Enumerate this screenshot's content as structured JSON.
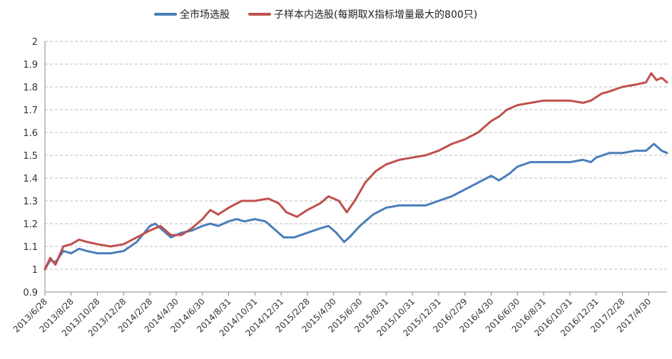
{
  "chart_data": {
    "type": "line",
    "title": "",
    "xlabel": "",
    "ylabel": "",
    "ylim": [
      0.9,
      2.0
    ],
    "yticks": [
      "0.9",
      "1",
      "1.1",
      "1.2",
      "1.3",
      "1.4",
      "1.5",
      "1.6",
      "1.7",
      "1.8",
      "1.9",
      "2"
    ],
    "grid": "horizontal-dashed",
    "legend": "top",
    "x_tick_labels": [
      "2013/6/28",
      "2013/8/28",
      "2013/10/28",
      "2013/12/28",
      "2014/2/28",
      "2014/4/30",
      "2014/6/30",
      "2014/8/31",
      "2014/10/31",
      "2014/12/31",
      "2015/2/28",
      "2015/4/30",
      "2015/6/30",
      "2015/8/31",
      "2015/10/31",
      "2015/12/31",
      "2016/2/29",
      "2016/4/30",
      "2016/6/30",
      "2016/8/31",
      "2016/10/31",
      "2016/12/31",
      "2017/2/28",
      "2017/4/30"
    ],
    "x_index_range": [
      0,
      23.7
    ],
    "series": [
      {
        "name": "全市场选股",
        "color": "#4a7ebb",
        "points": [
          [
            0,
            1.0
          ],
          [
            0.2,
            1.04
          ],
          [
            0.4,
            1.03
          ],
          [
            0.7,
            1.08
          ],
          [
            1.0,
            1.07
          ],
          [
            1.3,
            1.09
          ],
          [
            1.6,
            1.08
          ],
          [
            2.0,
            1.07
          ],
          [
            2.5,
            1.07
          ],
          [
            3.0,
            1.08
          ],
          [
            3.5,
            1.12
          ],
          [
            4.0,
            1.19
          ],
          [
            4.2,
            1.2
          ],
          [
            4.5,
            1.17
          ],
          [
            4.8,
            1.14
          ],
          [
            5.2,
            1.16
          ],
          [
            5.6,
            1.17
          ],
          [
            6.0,
            1.19
          ],
          [
            6.3,
            1.2
          ],
          [
            6.6,
            1.19
          ],
          [
            7.0,
            1.21
          ],
          [
            7.3,
            1.22
          ],
          [
            7.6,
            1.21
          ],
          [
            8.0,
            1.22
          ],
          [
            8.4,
            1.21
          ],
          [
            8.8,
            1.17
          ],
          [
            9.1,
            1.14
          ],
          [
            9.5,
            1.14
          ],
          [
            10.0,
            1.16
          ],
          [
            10.5,
            1.18
          ],
          [
            10.8,
            1.19
          ],
          [
            11.1,
            1.16
          ],
          [
            11.4,
            1.12
          ],
          [
            11.6,
            1.14
          ],
          [
            12.0,
            1.19
          ],
          [
            12.5,
            1.24
          ],
          [
            13.0,
            1.27
          ],
          [
            13.5,
            1.28
          ],
          [
            14.0,
            1.28
          ],
          [
            14.5,
            1.28
          ],
          [
            15.0,
            1.3
          ],
          [
            15.5,
            1.32
          ],
          [
            16.0,
            1.35
          ],
          [
            16.5,
            1.38
          ],
          [
            17.0,
            1.41
          ],
          [
            17.3,
            1.39
          ],
          [
            17.7,
            1.42
          ],
          [
            18.0,
            1.45
          ],
          [
            18.5,
            1.47
          ],
          [
            19.0,
            1.47
          ],
          [
            19.5,
            1.47
          ],
          [
            20.0,
            1.47
          ],
          [
            20.5,
            1.48
          ],
          [
            20.8,
            1.47
          ],
          [
            21.0,
            1.49
          ],
          [
            21.5,
            1.51
          ],
          [
            22.0,
            1.51
          ],
          [
            22.5,
            1.52
          ],
          [
            22.9,
            1.52
          ],
          [
            23.2,
            1.55
          ],
          [
            23.5,
            1.52
          ],
          [
            23.7,
            1.51
          ]
        ]
      },
      {
        "name": "子样本内选股(每期取X指标增量最大的800只)",
        "color": "#c0504d",
        "points": [
          [
            0,
            1.0
          ],
          [
            0.2,
            1.05
          ],
          [
            0.4,
            1.02
          ],
          [
            0.7,
            1.1
          ],
          [
            1.0,
            1.11
          ],
          [
            1.3,
            1.13
          ],
          [
            1.6,
            1.12
          ],
          [
            2.0,
            1.11
          ],
          [
            2.5,
            1.1
          ],
          [
            3.0,
            1.11
          ],
          [
            3.5,
            1.14
          ],
          [
            4.0,
            1.17
          ],
          [
            4.4,
            1.19
          ],
          [
            4.8,
            1.15
          ],
          [
            5.2,
            1.15
          ],
          [
            5.6,
            1.18
          ],
          [
            6.0,
            1.22
          ],
          [
            6.3,
            1.26
          ],
          [
            6.6,
            1.24
          ],
          [
            7.0,
            1.27
          ],
          [
            7.5,
            1.3
          ],
          [
            8.0,
            1.3
          ],
          [
            8.5,
            1.31
          ],
          [
            8.9,
            1.29
          ],
          [
            9.2,
            1.25
          ],
          [
            9.6,
            1.23
          ],
          [
            10.0,
            1.26
          ],
          [
            10.5,
            1.29
          ],
          [
            10.8,
            1.32
          ],
          [
            11.2,
            1.3
          ],
          [
            11.5,
            1.25
          ],
          [
            11.8,
            1.3
          ],
          [
            12.2,
            1.38
          ],
          [
            12.6,
            1.43
          ],
          [
            13.0,
            1.46
          ],
          [
            13.5,
            1.48
          ],
          [
            14.0,
            1.49
          ],
          [
            14.5,
            1.5
          ],
          [
            15.0,
            1.52
          ],
          [
            15.5,
            1.55
          ],
          [
            16.0,
            1.57
          ],
          [
            16.5,
            1.6
          ],
          [
            17.0,
            1.65
          ],
          [
            17.3,
            1.67
          ],
          [
            17.6,
            1.7
          ],
          [
            18.0,
            1.72
          ],
          [
            18.5,
            1.73
          ],
          [
            19.0,
            1.74
          ],
          [
            19.5,
            1.74
          ],
          [
            20.0,
            1.74
          ],
          [
            20.5,
            1.73
          ],
          [
            20.8,
            1.74
          ],
          [
            21.2,
            1.77
          ],
          [
            21.5,
            1.78
          ],
          [
            22.0,
            1.8
          ],
          [
            22.5,
            1.81
          ],
          [
            22.9,
            1.82
          ],
          [
            23.1,
            1.86
          ],
          [
            23.3,
            1.83
          ],
          [
            23.5,
            1.84
          ],
          [
            23.7,
            1.82
          ]
        ]
      }
    ]
  }
}
